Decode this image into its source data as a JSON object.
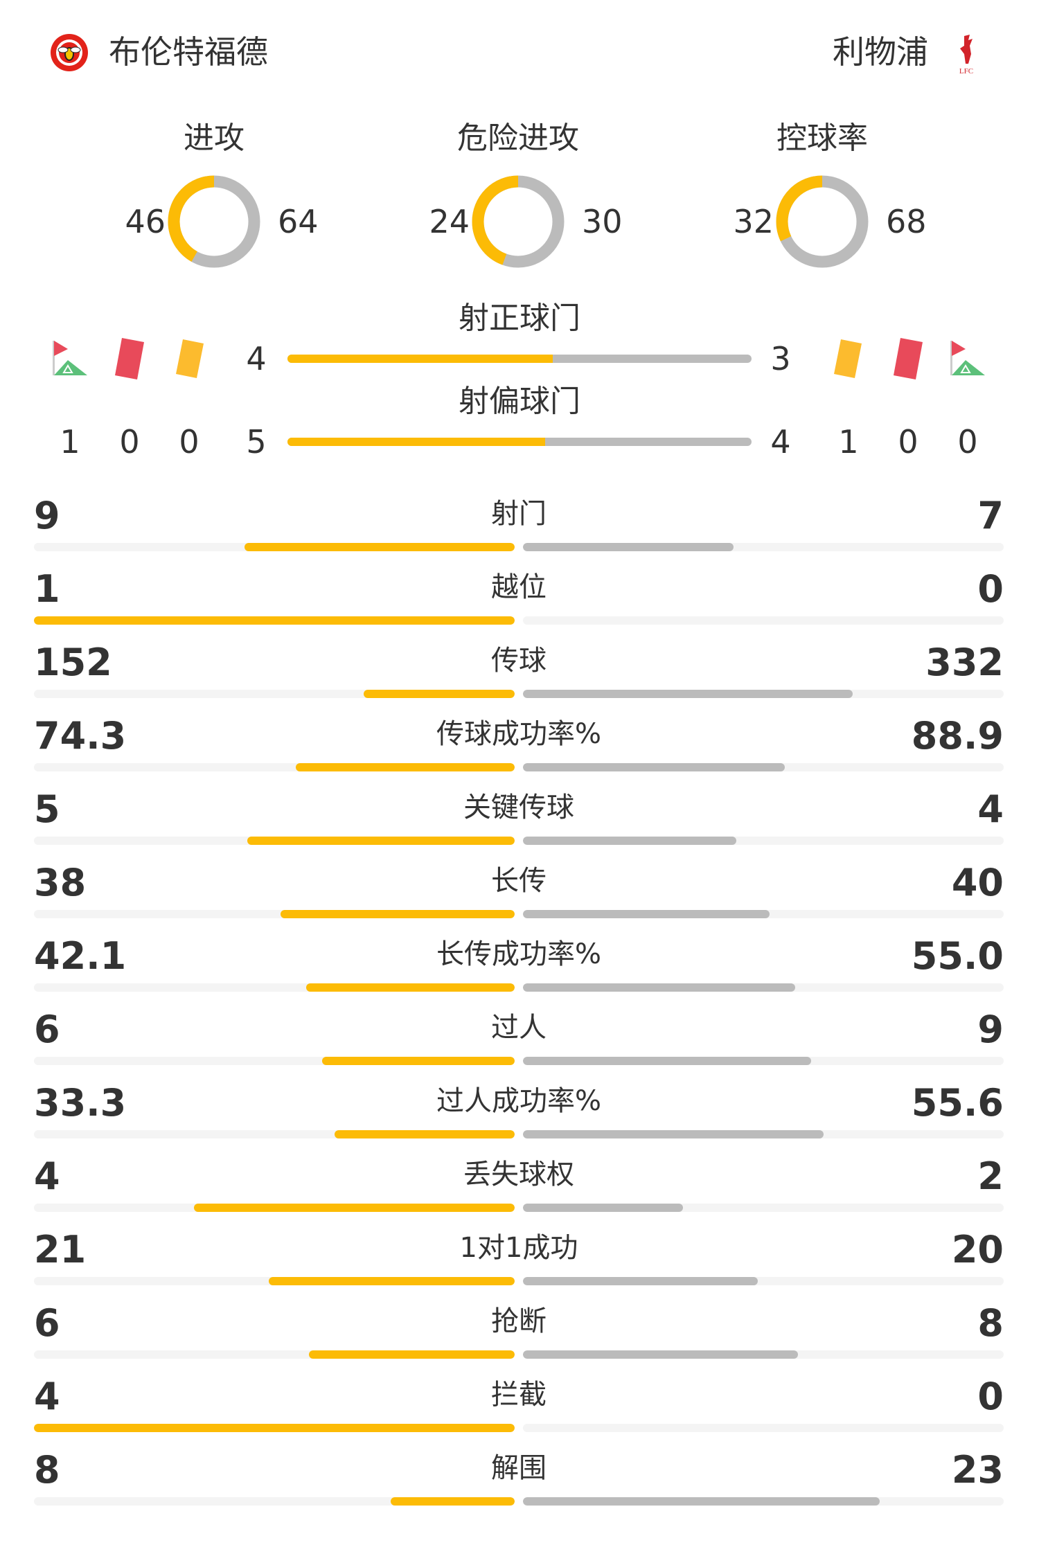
{
  "home": {
    "name": "布伦特福德",
    "logo": "brentford-crest"
  },
  "away": {
    "name": "利物浦",
    "logo": "liverpool-liverbird",
    "logo_text": "LFC"
  },
  "colors": {
    "home": "#fcbb06",
    "away": "#bbbbbb",
    "track": "#f4f4f4",
    "red_card": "#e84a5a",
    "yellow_card": "#fcbb2e",
    "corner_green": "#5cc07a"
  },
  "donuts": [
    {
      "label": "进攻",
      "home": "46",
      "away": "64"
    },
    {
      "label": "危险进攻",
      "home": "24",
      "away": "30"
    },
    {
      "label": "控球率",
      "home": "32",
      "away": "68"
    }
  ],
  "shots_on_target": {
    "label": "射正球门",
    "home": "4",
    "away": "3"
  },
  "shots_off_target": {
    "label": "射偏球门",
    "home": "5",
    "away": "4"
  },
  "home_counts": {
    "corners": "1",
    "red_cards": "0",
    "yellow_cards": "0"
  },
  "away_counts": {
    "yellow_cards": "1",
    "red_cards": "0",
    "corners": "0"
  },
  "stats": [
    {
      "label": "射门",
      "home": "9",
      "away": "7"
    },
    {
      "label": "越位",
      "home": "1",
      "away": "0"
    },
    {
      "label": "传球",
      "home": "152",
      "away": "332"
    },
    {
      "label": "传球成功率%",
      "home": "74.3",
      "away": "88.9"
    },
    {
      "label": "关键传球",
      "home": "5",
      "away": "4"
    },
    {
      "label": "长传",
      "home": "38",
      "away": "40"
    },
    {
      "label": "长传成功率%",
      "home": "42.1",
      "away": "55.0"
    },
    {
      "label": "过人",
      "home": "6",
      "away": "9"
    },
    {
      "label": "过人成功率%",
      "home": "33.3",
      "away": "55.6"
    },
    {
      "label": "丢失球权",
      "home": "4",
      "away": "2"
    },
    {
      "label": "1对1成功",
      "home": "21",
      "away": "20"
    },
    {
      "label": "抢断",
      "home": "6",
      "away": "8"
    },
    {
      "label": "拦截",
      "home": "4",
      "away": "0"
    },
    {
      "label": "解围",
      "home": "8",
      "away": "23"
    }
  ]
}
